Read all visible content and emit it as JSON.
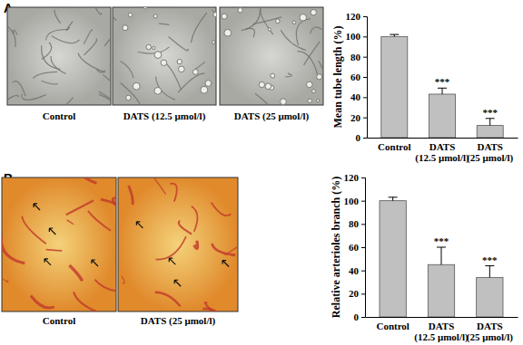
{
  "chart_data": [
    {
      "type": "bar",
      "title": "A",
      "image_captions": [
        "Control",
        "DATS (12.5 μmol/l)",
        "DATS (25 μmol/l)"
      ],
      "y_label": "Mean tube length (%)",
      "categories": [
        "Control",
        "DATS (12.5 μmol/l)",
        "DATS (25 μmol/l)"
      ],
      "values": [
        100,
        43,
        12
      ],
      "errors": [
        2,
        6,
        7
      ],
      "significance": [
        null,
        "***",
        "***"
      ],
      "color": "#c0c0c0",
      "ylim": [
        0,
        120
      ],
      "yticks": [
        0,
        20,
        40,
        60,
        80,
        100,
        120
      ],
      "grid": false
    },
    {
      "type": "bar",
      "title": "B",
      "image_captions": [
        "Control",
        "DATS (25 μmol/l)"
      ],
      "y_label": "Relative arterioles branch (%)",
      "categories": [
        "Control",
        "DATS (12.5 μmol/l)",
        "DATS (25 μmol/l)"
      ],
      "values": [
        100,
        45,
        34
      ],
      "errors": [
        3,
        15,
        10
      ],
      "significance": [
        null,
        "***",
        "***"
      ],
      "color": "#c0c0c0",
      "ylim": [
        0,
        120
      ],
      "yticks": [
        0,
        20,
        40,
        60,
        80,
        100,
        120
      ],
      "grid": false
    }
  ]
}
